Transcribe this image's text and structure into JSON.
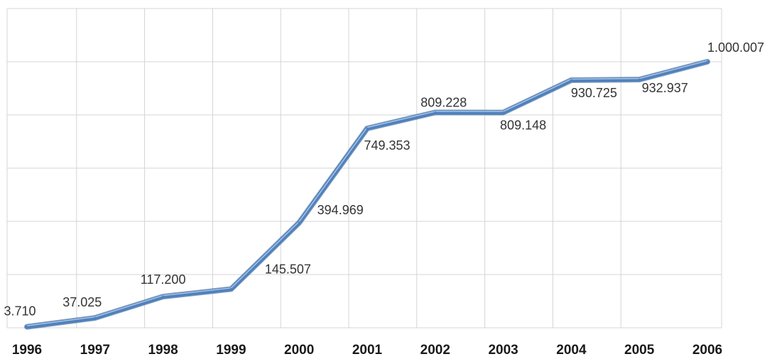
{
  "chart_data": {
    "type": "line",
    "categories": [
      "1996",
      "1997",
      "1998",
      "1999",
      "2000",
      "2001",
      "2002",
      "2003",
      "2004",
      "2005",
      "2006"
    ],
    "series": [
      {
        "values": [
          3710,
          37025,
          117200,
          145507,
          394969,
          749353,
          809228,
          809148,
          930725,
          932937,
          1000007
        ],
        "labels": [
          "3.710",
          "37.025",
          "117.200",
          "145.507",
          "394.969",
          "749.353",
          "809.228",
          "809.148",
          "930.725",
          "932.937",
          "1.000.007"
        ],
        "color": "#4f81bd"
      }
    ],
    "ylim": [
      0,
      1200000
    ],
    "grid": true,
    "legend": "none"
  }
}
